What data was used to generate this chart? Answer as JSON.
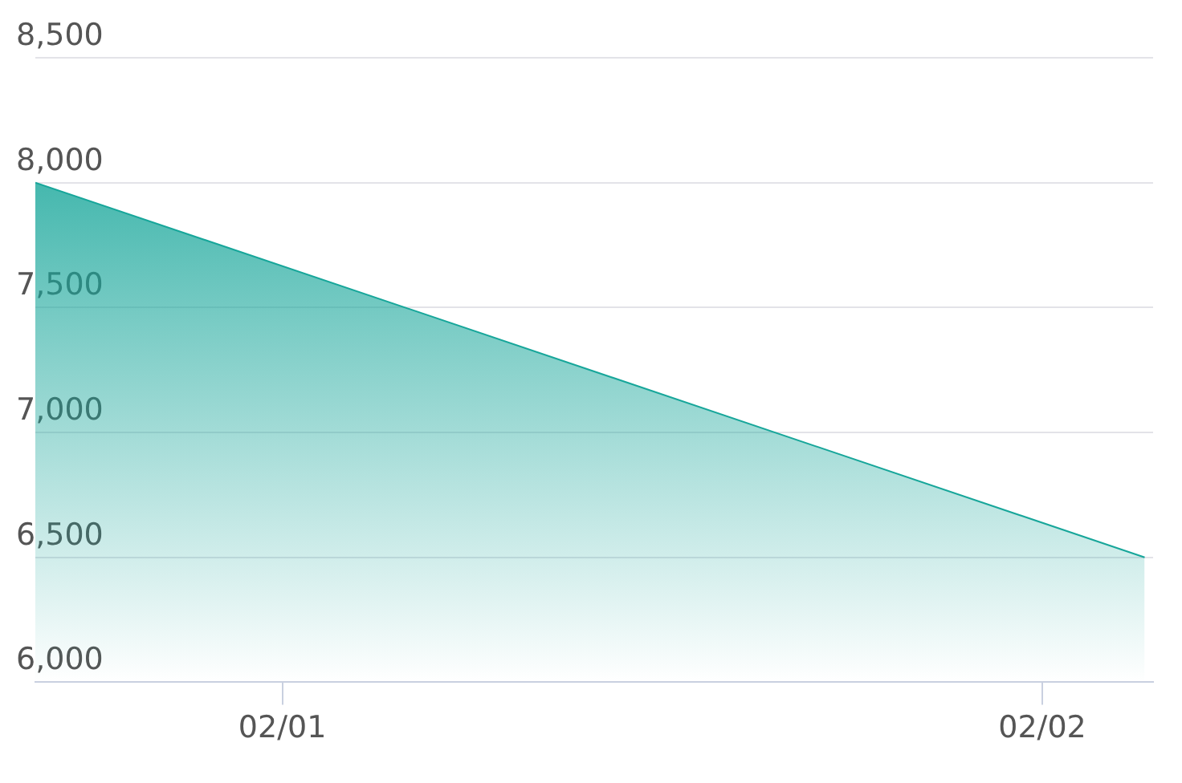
{
  "chart_data": {
    "type": "area",
    "x": [
      "--01-31T16:12",
      "--02-02T03:14"
    ],
    "values": [
      8000,
      6500
    ],
    "color": "#17a69a",
    "xlim": [
      "--01-31T16:12",
      "--02-02T03:30"
    ],
    "xticks": [
      {
        "value": "--02-01",
        "label": "02/01"
      },
      {
        "value": "--02-02",
        "label": "02/02"
      }
    ],
    "ylim": [
      6000,
      8500
    ],
    "yticks": [
      {
        "value": 6000,
        "label": "6,000"
      },
      {
        "value": 6500,
        "label": "6,500"
      },
      {
        "value": 7000,
        "label": "7,000"
      },
      {
        "value": 7500,
        "label": "7,500"
      },
      {
        "value": 8000,
        "label": "8,000"
      },
      {
        "value": 8500,
        "label": "8,500"
      }
    ],
    "grid": "y",
    "legend": false,
    "marker": "none"
  }
}
